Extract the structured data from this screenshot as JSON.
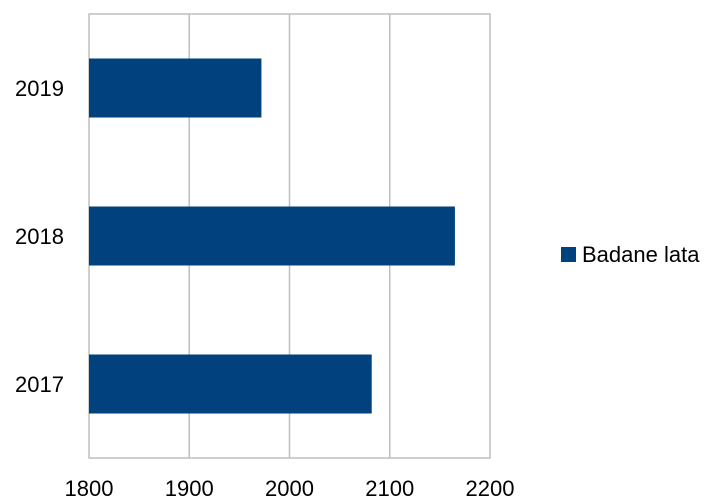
{
  "chart_data": {
    "type": "bar",
    "orientation": "horizontal",
    "categories": [
      "2017",
      "2018",
      "2019"
    ],
    "series": [
      {
        "name": "Badane lata",
        "values": [
          2082,
          2165,
          1972
        ],
        "color": "#00417E"
      }
    ],
    "title": "",
    "xlabel": "",
    "ylabel": "",
    "xlim": [
      1800,
      2200
    ],
    "x_ticks": [
      1800,
      1900,
      2000,
      2100,
      2200
    ],
    "grid": "vertical",
    "gridline_color": "#BFBFBF",
    "legend_position": "right"
  }
}
